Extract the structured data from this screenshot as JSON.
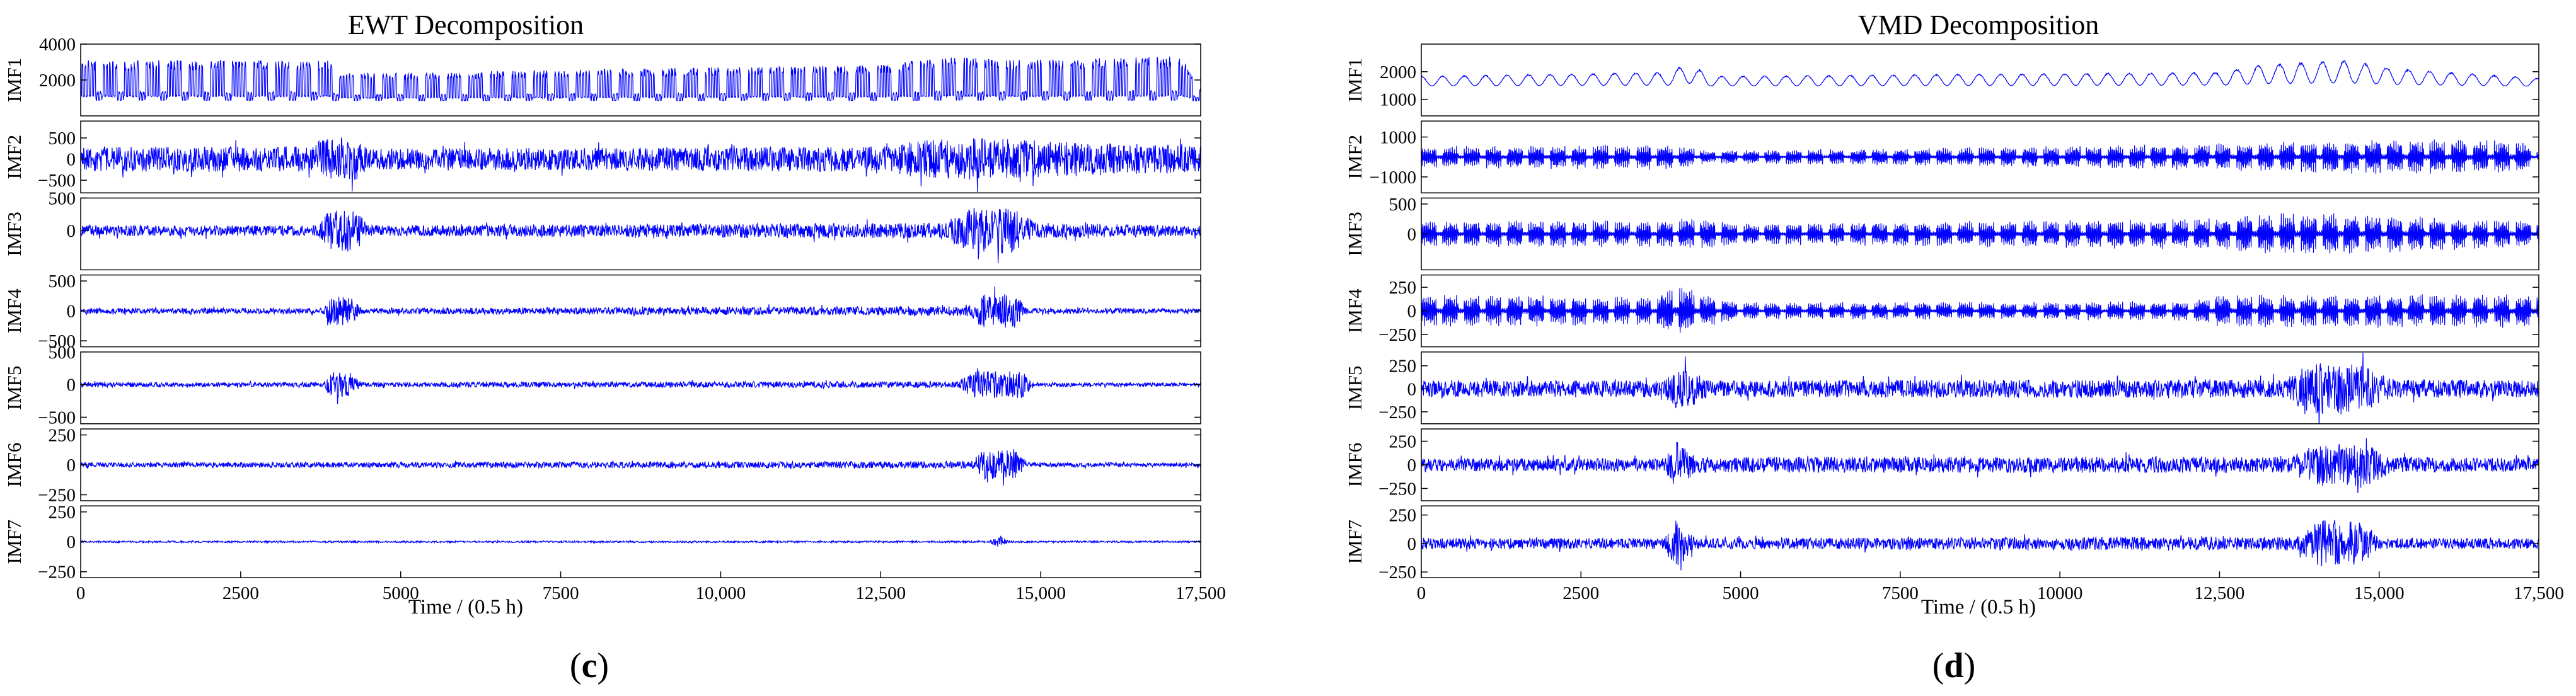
{
  "chart_data": [
    {
      "type": "line",
      "title": "EWT Decomposition",
      "xlabel": "Time / (0.5 h)",
      "xlim": [
        0,
        17500
      ],
      "xticks": [
        0,
        2500,
        5000,
        7500,
        10000,
        12500,
        15000,
        17500
      ],
      "xtick_labels": [
        "0",
        "2500",
        "5000",
        "7500",
        "10,000",
        "12,500",
        "15,000",
        "17,500"
      ],
      "caption_letter": "c",
      "series": [
        {
          "name": "IMF1",
          "ylim": [
            0,
            4000
          ],
          "yticks": [
            2000,
            4000
          ],
          "ytick_labels": [
            "2000",
            "4000"
          ],
          "baseline": 800,
          "amplitude": 2000,
          "style": "daily",
          "env": [
            [
              0,
              1
            ],
            [
              3900,
              1
            ],
            [
              4000,
              0.7
            ],
            [
              5000,
              0.7
            ],
            [
              12500,
              0.9
            ],
            [
              13700,
              1.1
            ],
            [
              14500,
              1
            ],
            [
              17200,
              1.1
            ],
            [
              17500,
              0.3
            ]
          ]
        },
        {
          "name": "IMF2",
          "ylim": [
            -800,
            900
          ],
          "yticks": [
            -500,
            0,
            500
          ],
          "ytick_labels": [
            "−500",
            "0",
            "500"
          ],
          "baseline": 0,
          "amplitude": 500,
          "style": "burst",
          "env": [
            [
              0,
              0.6
            ],
            [
              3600,
              0.6
            ],
            [
              3800,
              1
            ],
            [
              4300,
              1
            ],
            [
              4500,
              0.5
            ],
            [
              12500,
              0.6
            ],
            [
              13200,
              0.9
            ],
            [
              14000,
              1
            ],
            [
              14800,
              0.9
            ],
            [
              17500,
              0.6
            ]
          ]
        },
        {
          "name": "IMF3",
          "ylim": [
            -600,
            500
          ],
          "yticks": [
            0,
            500
          ],
          "ytick_labels": [
            "0",
            "500"
          ],
          "baseline": 0,
          "amplitude": 400,
          "style": "burst",
          "env": [
            [
              0,
              0.2
            ],
            [
              3700,
              0.2
            ],
            [
              3900,
              0.8
            ],
            [
              4300,
              0.8
            ],
            [
              4500,
              0.2
            ],
            [
              13500,
              0.3
            ],
            [
              13900,
              0.9
            ],
            [
              14600,
              0.9
            ],
            [
              14900,
              0.3
            ],
            [
              17500,
              0.2
            ]
          ]
        },
        {
          "name": "IMF4",
          "ylim": [
            -600,
            600
          ],
          "yticks": [
            -500,
            0,
            500
          ],
          "ytick_labels": [
            "−500",
            "0",
            "500"
          ],
          "baseline": 0,
          "amplitude": 400,
          "style": "burst",
          "env": [
            [
              0,
              0.12
            ],
            [
              3800,
              0.12
            ],
            [
              3900,
              0.6
            ],
            [
              4200,
              0.6
            ],
            [
              4400,
              0.12
            ],
            [
              13800,
              0.2
            ],
            [
              14100,
              0.7
            ],
            [
              14600,
              0.7
            ],
            [
              14800,
              0.12
            ],
            [
              17500,
              0.1
            ]
          ]
        },
        {
          "name": "IMF5",
          "ylim": [
            -600,
            500
          ],
          "yticks": [
            -500,
            0,
            500
          ],
          "ytick_labels": [
            "−500",
            "0",
            "500"
          ],
          "baseline": 0,
          "amplitude": 350,
          "style": "burst",
          "env": [
            [
              0,
              0.1
            ],
            [
              3800,
              0.1
            ],
            [
              3900,
              0.55
            ],
            [
              4200,
              0.55
            ],
            [
              4400,
              0.1
            ],
            [
              13700,
              0.15
            ],
            [
              14000,
              0.6
            ],
            [
              14700,
              0.6
            ],
            [
              14900,
              0.1
            ],
            [
              17500,
              0.08
            ]
          ]
        },
        {
          "name": "IMF6",
          "ylim": [
            -300,
            300
          ],
          "yticks": [
            -250,
            0,
            250
          ],
          "ytick_labels": [
            "−250",
            "0",
            "250"
          ],
          "baseline": 0,
          "amplitude": 200,
          "style": "burst",
          "env": [
            [
              0,
              0.1
            ],
            [
              13900,
              0.15
            ],
            [
              14100,
              0.6
            ],
            [
              14600,
              0.6
            ],
            [
              14800,
              0.1
            ],
            [
              17500,
              0.08
            ]
          ]
        },
        {
          "name": "IMF7",
          "ylim": [
            -300,
            300
          ],
          "yticks": [
            -250,
            0,
            250
          ],
          "ytick_labels": [
            "−250",
            "0",
            "250"
          ],
          "baseline": 0,
          "amplitude": 150,
          "style": "burst",
          "env": [
            [
              0,
              0.05
            ],
            [
              14200,
              0.05
            ],
            [
              14350,
              0.4
            ],
            [
              14500,
              0.05
            ],
            [
              17500,
              0.05
            ]
          ]
        }
      ]
    },
    {
      "type": "line",
      "title": "VMD Decomposition",
      "xlabel": "Time / (0.5 h)",
      "xlim": [
        0,
        17500
      ],
      "xticks": [
        0,
        2500,
        5000,
        7500,
        10000,
        12500,
        15000,
        17500
      ],
      "xtick_labels": [
        "0",
        "2500",
        "5000",
        "7500",
        "10000",
        "12,500",
        "15,000",
        "17,500"
      ],
      "caption_letter": "d",
      "series": [
        {
          "name": "IMF1",
          "ylim": [
            400,
            3000
          ],
          "yticks": [
            1000,
            2000
          ],
          "ytick_labels": [
            "1000",
            "2000"
          ],
          "baseline": 1400,
          "amplitude": 700,
          "style": "smooth",
          "env": [
            [
              0,
              0.6
            ],
            [
              3900,
              0.8
            ],
            [
              4200,
              1.3
            ],
            [
              4500,
              0.6
            ],
            [
              12500,
              0.8
            ],
            [
              13200,
              1.2
            ],
            [
              14500,
              1.4
            ],
            [
              15200,
              1
            ],
            [
              17500,
              0.5
            ]
          ]
        },
        {
          "name": "IMF2",
          "ylim": [
            -1800,
            1800
          ],
          "yticks": [
            -1000,
            1000
          ],
          "ytick_labels": [
            "−1000",
            "1000"
          ],
          "baseline": 0,
          "amplitude": 1100,
          "style": "weekly",
          "env": [
            [
              0,
              0.5
            ],
            [
              3900,
              0.6
            ],
            [
              4500,
              0.3
            ],
            [
              10000,
              0.5
            ],
            [
              12000,
              0.6
            ],
            [
              14500,
              0.8
            ],
            [
              17200,
              0.8
            ],
            [
              17500,
              0.2
            ]
          ]
        },
        {
          "name": "IMF3",
          "ylim": [
            -600,
            600
          ],
          "yticks": [
            0,
            500
          ],
          "ytick_labels": [
            "0",
            "500"
          ],
          "baseline": 0,
          "amplitude": 450,
          "style": "weekly",
          "env": [
            [
              0,
              0.5
            ],
            [
              3800,
              0.5
            ],
            [
              4200,
              0.6
            ],
            [
              5000,
              0.4
            ],
            [
              12500,
              0.6
            ],
            [
              13100,
              0.8
            ],
            [
              14000,
              0.8
            ],
            [
              17500,
              0.5
            ]
          ]
        },
        {
          "name": "IMF4",
          "ylim": [
            -380,
            380
          ],
          "yticks": [
            -250,
            0,
            250
          ],
          "ytick_labels": [
            "−250",
            "0",
            "250"
          ],
          "baseline": 0,
          "amplitude": 300,
          "style": "weekly",
          "env": [
            [
              0,
              0.6
            ],
            [
              3600,
              0.5
            ],
            [
              4000,
              1
            ],
            [
              4400,
              0.6
            ],
            [
              5000,
              0.3
            ],
            [
              12000,
              0.35
            ],
            [
              12500,
              0.6
            ],
            [
              17500,
              0.6
            ]
          ]
        },
        {
          "name": "IMF5",
          "ylim": [
            -380,
            400
          ],
          "yticks": [
            -250,
            0,
            250
          ],
          "ytick_labels": [
            "−250",
            "0",
            "250"
          ],
          "baseline": 0,
          "amplitude": 300,
          "style": "burst",
          "env": [
            [
              0,
              0.3
            ],
            [
              3800,
              0.3
            ],
            [
              4100,
              0.8
            ],
            [
              4500,
              0.3
            ],
            [
              13500,
              0.35
            ],
            [
              14000,
              1
            ],
            [
              14700,
              0.9
            ],
            [
              15200,
              0.35
            ],
            [
              17500,
              0.3
            ]
          ]
        },
        {
          "name": "IMF6",
          "ylim": [
            -380,
            380
          ],
          "yticks": [
            -250,
            0,
            250
          ],
          "ytick_labels": [
            "−250",
            "0",
            "250"
          ],
          "baseline": 0,
          "amplitude": 280,
          "style": "burst",
          "env": [
            [
              0,
              0.25
            ],
            [
              3800,
              0.25
            ],
            [
              4000,
              0.9
            ],
            [
              4300,
              0.3
            ],
            [
              13600,
              0.3
            ],
            [
              14000,
              0.8
            ],
            [
              14800,
              0.8
            ],
            [
              15200,
              0.3
            ],
            [
              17500,
              0.25
            ]
          ]
        },
        {
          "name": "IMF7",
          "ylim": [
            -300,
            330
          ],
          "yticks": [
            -250,
            0,
            250
          ],
          "ytick_labels": [
            "−250",
            "0",
            "250"
          ],
          "baseline": 0,
          "amplitude": 240,
          "style": "burst",
          "env": [
            [
              0,
              0.2
            ],
            [
              3800,
              0.2
            ],
            [
              4000,
              0.9
            ],
            [
              4300,
              0.2
            ],
            [
              13700,
              0.25
            ],
            [
              14100,
              0.9
            ],
            [
              14700,
              0.8
            ],
            [
              15000,
              0.2
            ],
            [
              17500,
              0.2
            ]
          ]
        }
      ]
    }
  ],
  "style": {
    "line_color": "#0000ff",
    "axis_color": "#000000"
  }
}
